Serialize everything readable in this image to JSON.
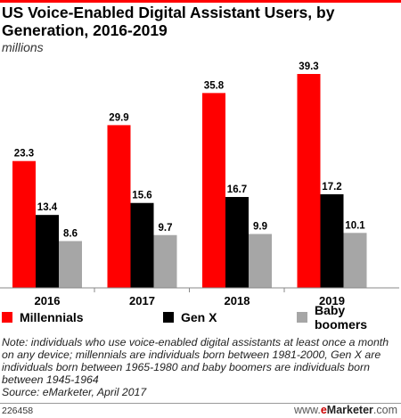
{
  "title": "US Voice-Enabled Digital Assistant Users, by Generation, 2016-2019",
  "subtitle": "millions",
  "colors": {
    "accent": "#ff0000",
    "millennials": "#ff0000",
    "genx": "#000000",
    "boomers": "#a6a6a6",
    "axis": "#888888"
  },
  "chart_data": {
    "type": "bar",
    "categories": [
      "2016",
      "2017",
      "2018",
      "2019"
    ],
    "series": [
      {
        "name": "Millennials",
        "values": [
          23.3,
          29.9,
          35.8,
          39.3
        ],
        "labels": [
          "23.3",
          "29.9",
          "35.8",
          "39.3"
        ]
      },
      {
        "name": "Gen X",
        "values": [
          13.4,
          15.6,
          16.7,
          17.2
        ],
        "labels": [
          "13.4",
          "15.6",
          "16.7",
          "17.2"
        ]
      },
      {
        "name": "Baby boomers",
        "values": [
          8.6,
          9.7,
          9.9,
          10.1
        ],
        "labels": [
          "8.6",
          "9.7",
          "9.9",
          "10.1"
        ]
      }
    ],
    "ylim": [
      0,
      39.3
    ],
    "grid": false,
    "legend": "bottom"
  },
  "note": "Note: individuals who use voice-enabled digital assistants at least once a month on any device; millennials are individuals born between 1981-2000, Gen X are individuals born between 1965-1980 and baby boomers are individuals born between 1945-1964",
  "source": "Source: eMarketer, April 2017",
  "footer": {
    "id": "226458",
    "brand_www": "www.",
    "brand_e": "e",
    "brand_name": "Marketer",
    "brand_com": ".com"
  }
}
